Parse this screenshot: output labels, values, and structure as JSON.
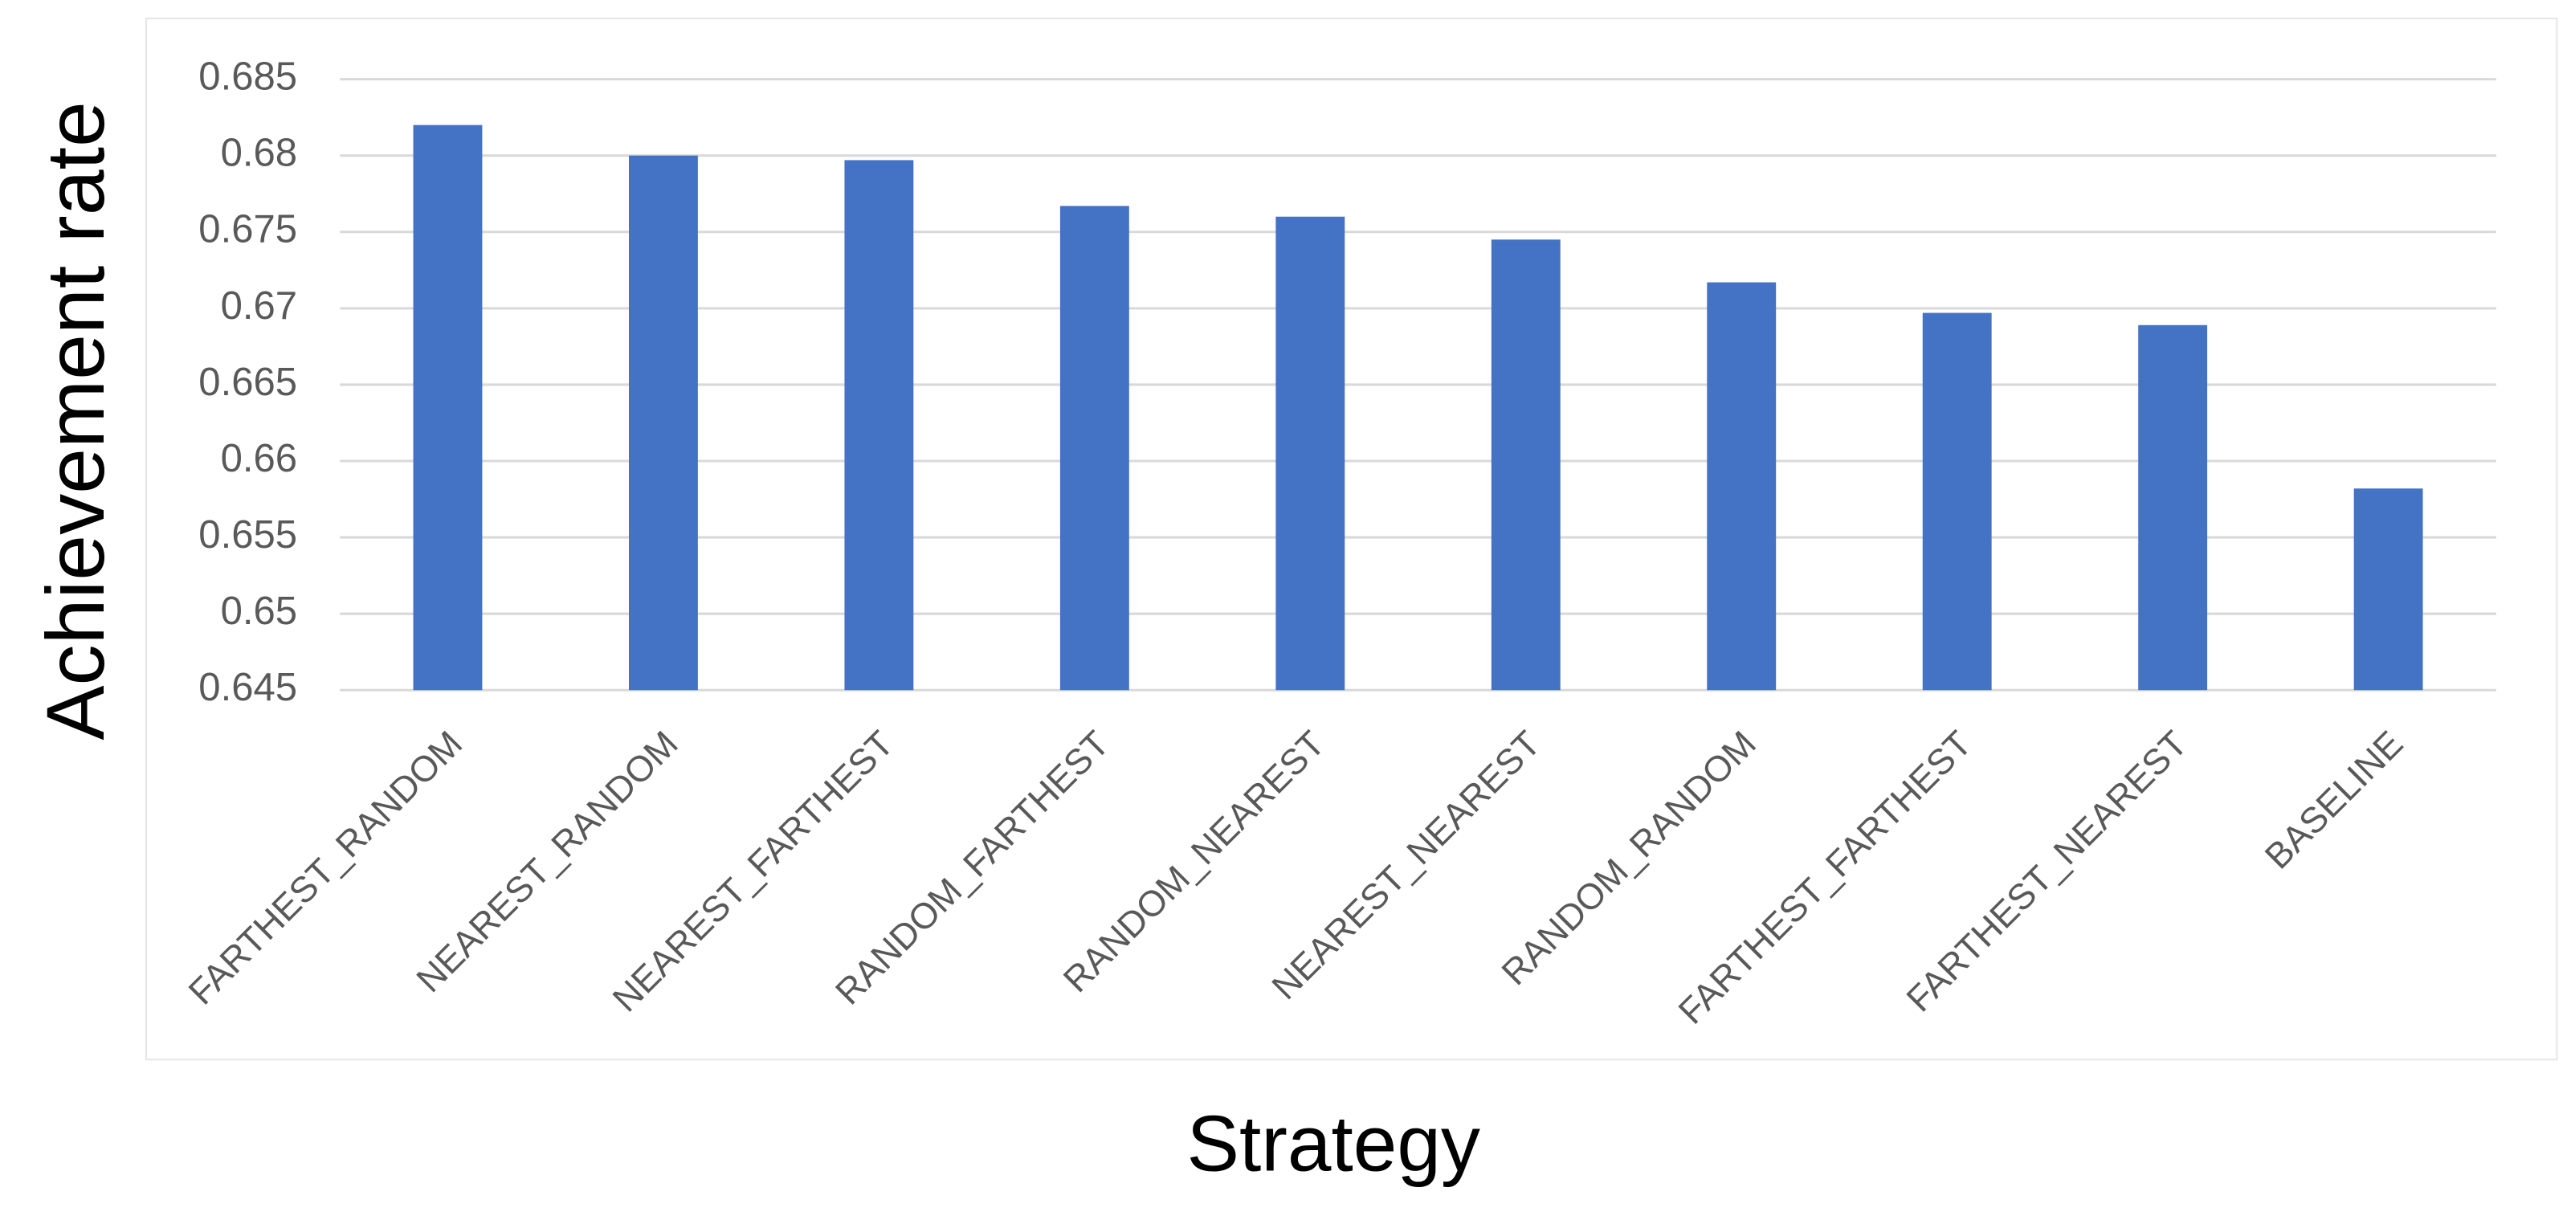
{
  "chart_data": {
    "type": "bar",
    "x_label": "Strategy",
    "y_label": "Achievement rate",
    "categories": [
      "FARTHEST_RANDOM",
      "NEAREST_RANDOM",
      "NEAREST_FARTHEST",
      "RANDOM_FARTHEST",
      "RANDOM_NEAREST",
      "NEAREST_NEAREST",
      "RANDOM_RANDOM",
      "FARTHEST_FARTHEST",
      "FARTHEST_NEAREST",
      "BASELINE"
    ],
    "values": [
      0.682,
      0.68,
      0.6797,
      0.6767,
      0.676,
      0.6745,
      0.6717,
      0.6697,
      0.6689,
      0.6582
    ],
    "color": "#4472c4",
    "ylim": [
      0.645,
      0.685
    ],
    "yticks": [
      0.645,
      0.65,
      0.655,
      0.66,
      0.665,
      0.67,
      0.675,
      0.68,
      0.685
    ],
    "grid": true
  }
}
